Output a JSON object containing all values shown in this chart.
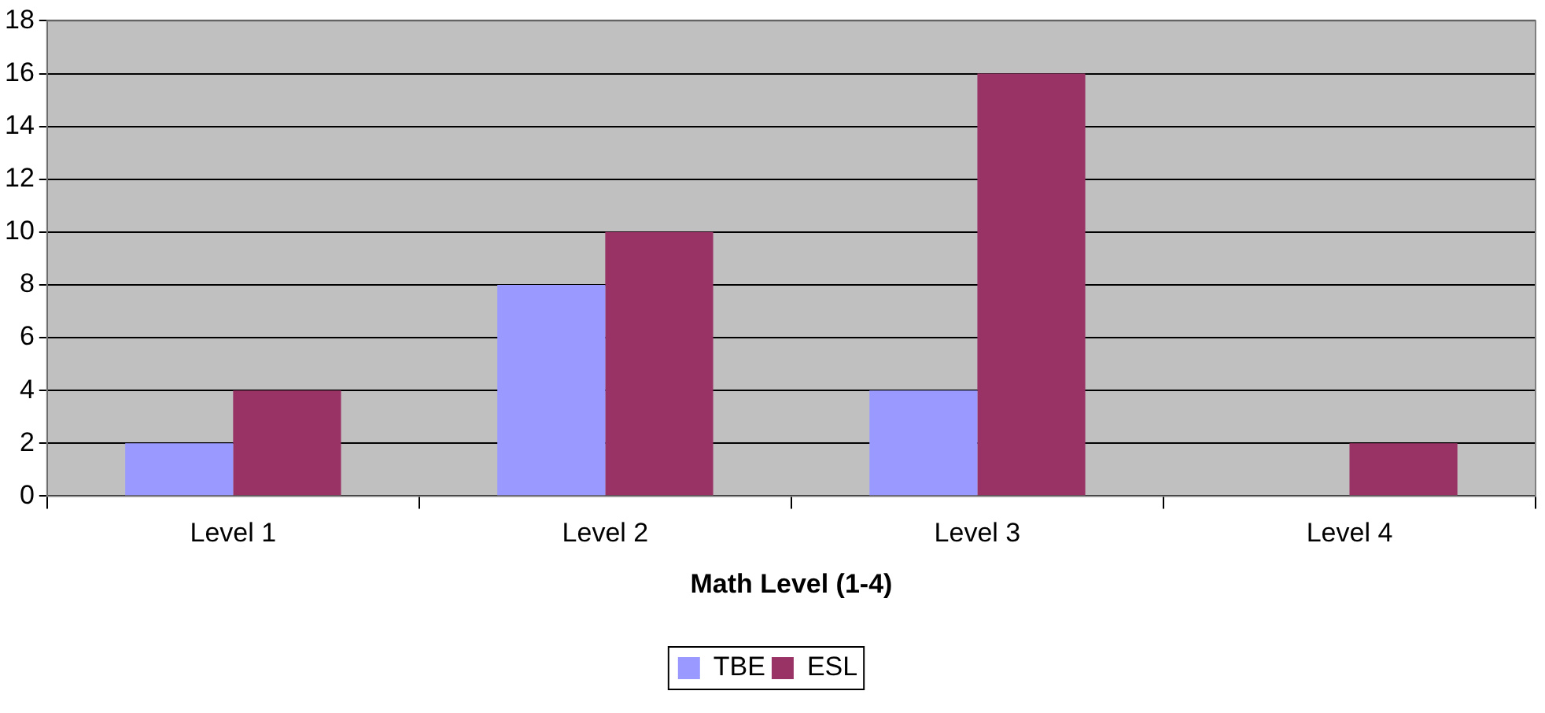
{
  "chart_data": {
    "type": "bar",
    "xlabel": "Math Level (1-4)",
    "categories": [
      "Level 1",
      "Level 2",
      "Level 3",
      "Level 4"
    ],
    "series": [
      {
        "name": "TBE",
        "color": "#9999ff",
        "values": [
          2,
          8,
          4,
          0
        ]
      },
      {
        "name": "ESL",
        "color": "#993366",
        "values": [
          4,
          10,
          16,
          2
        ]
      }
    ],
    "ylim": [
      0,
      18
    ],
    "yticks": [
      0,
      2,
      4,
      6,
      8,
      10,
      12,
      14,
      16,
      18
    ],
    "grid": "y",
    "legend": "bottom"
  }
}
